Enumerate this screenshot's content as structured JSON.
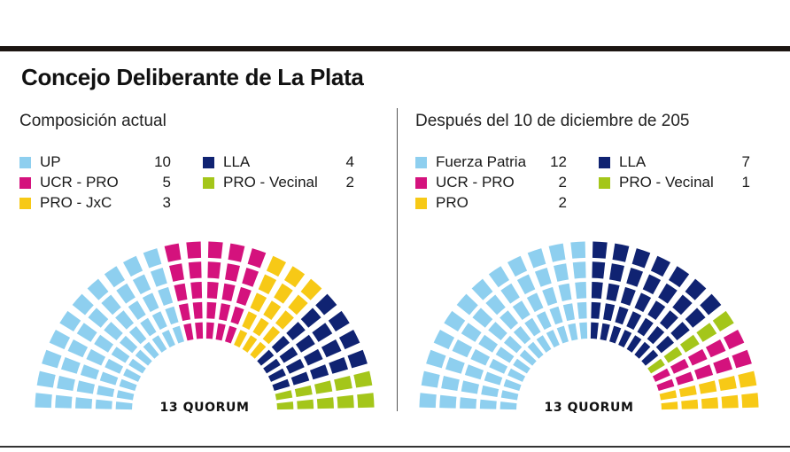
{
  "title": "Concejo Deliberante de La Plata",
  "colors": {
    "light_blue": "#8ecfef",
    "magenta": "#d4127d",
    "yellow": "#f7c916",
    "navy": "#102372",
    "lime": "#a4c61a"
  },
  "chart_data": [
    {
      "type": "parliament",
      "title": "Composición actual",
      "total_seats": 24,
      "quorum": 13,
      "quorum_label": "13 QUORUM",
      "rings": 5,
      "series": [
        {
          "name": "UP",
          "value": 10,
          "color": "#8ecfef",
          "icon": "square-swatch"
        },
        {
          "name": "UCR - PRO",
          "value": 5,
          "color": "#d4127d",
          "icon": "square-swatch"
        },
        {
          "name": "PRO - JxC",
          "value": 3,
          "color": "#f7c916",
          "icon": "square-swatch"
        },
        {
          "name": "LLA",
          "value": 4,
          "color": "#102372",
          "icon": "square-swatch"
        },
        {
          "name": "PRO - Vecinal",
          "value": 2,
          "color": "#a4c61a",
          "icon": "square-swatch"
        }
      ],
      "seat_order": [
        "UP",
        "UCR - PRO",
        "PRO - JxC",
        "LLA",
        "PRO - Vecinal"
      ]
    },
    {
      "type": "parliament",
      "title": "Después del 10 de diciembre de 205",
      "total_seats": 24,
      "quorum": 13,
      "quorum_label": "13 QUORUM",
      "rings": 5,
      "series": [
        {
          "name": "Fuerza Patria",
          "value": 12,
          "color": "#8ecfef",
          "icon": "square-swatch"
        },
        {
          "name": "UCR - PRO",
          "value": 2,
          "color": "#d4127d",
          "icon": "square-swatch"
        },
        {
          "name": "PRO",
          "value": 2,
          "color": "#f7c916",
          "icon": "square-swatch"
        },
        {
          "name": "LLA",
          "value": 7,
          "color": "#102372",
          "icon": "square-swatch"
        },
        {
          "name": "PRO - Vecinal",
          "value": 1,
          "color": "#a4c61a",
          "icon": "square-swatch"
        }
      ],
      "seat_order": [
        "Fuerza Patria",
        "LLA",
        "PRO - Vecinal",
        "UCR - PRO",
        "PRO"
      ]
    }
  ]
}
